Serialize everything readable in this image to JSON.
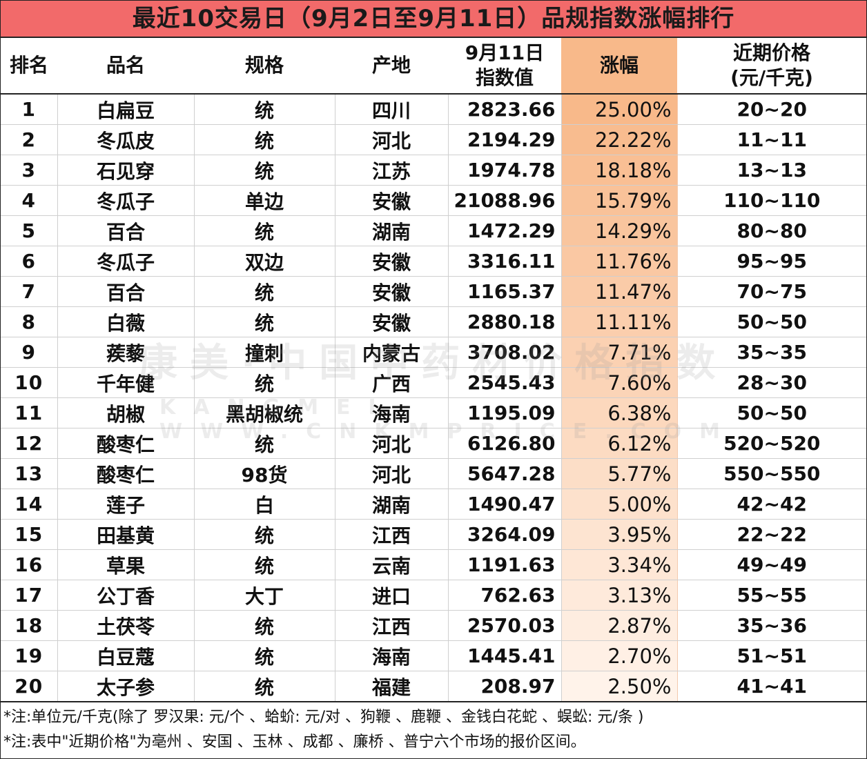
{
  "title": "最近10交易日（9月2日至9月11日）品规指数涨幅排行",
  "headers": {
    "rank": "排名",
    "name": "品名",
    "spec": "规格",
    "origin": "产地",
    "index_line1": "9月11日",
    "index_line2": "指数值",
    "growth": "涨幅",
    "price_line1": "近期价格",
    "price_line2": "(元/千克)"
  },
  "rows": [
    {
      "rank": "1",
      "name": "白扁豆",
      "spec": "统",
      "origin": "四川",
      "index": "2823.66",
      "growth": "25.00%",
      "price": "20~20"
    },
    {
      "rank": "2",
      "name": "冬瓜皮",
      "spec": "统",
      "origin": "河北",
      "index": "2194.29",
      "growth": "22.22%",
      "price": "11~11"
    },
    {
      "rank": "3",
      "name": "石见穿",
      "spec": "统",
      "origin": "江苏",
      "index": "1974.78",
      "growth": "18.18%",
      "price": "13~13"
    },
    {
      "rank": "4",
      "name": "冬瓜子",
      "spec": "单边",
      "origin": "安徽",
      "index": "21088.96",
      "growth": "15.79%",
      "price": "110~110"
    },
    {
      "rank": "5",
      "name": "百合",
      "spec": "统",
      "origin": "湖南",
      "index": "1472.29",
      "growth": "14.29%",
      "price": "80~80"
    },
    {
      "rank": "6",
      "name": "冬瓜子",
      "spec": "双边",
      "origin": "安徽",
      "index": "3316.11",
      "growth": "11.76%",
      "price": "95~95"
    },
    {
      "rank": "7",
      "name": "百合",
      "spec": "统",
      "origin": "安徽",
      "index": "1165.37",
      "growth": "11.47%",
      "price": "70~75"
    },
    {
      "rank": "8",
      "name": "白薇",
      "spec": "统",
      "origin": "安徽",
      "index": "2880.18",
      "growth": "11.11%",
      "price": "50~50"
    },
    {
      "rank": "9",
      "name": "蒺藜",
      "spec": "撞刺",
      "origin": "内蒙古",
      "index": "3708.02",
      "growth": "7.71%",
      "price": "35~35"
    },
    {
      "rank": "10",
      "name": "千年健",
      "spec": "统",
      "origin": "广西",
      "index": "2545.43",
      "growth": "7.60%",
      "price": "28~30"
    },
    {
      "rank": "11",
      "name": "胡椒",
      "spec": "黑胡椒统",
      "origin": "海南",
      "index": "1195.09",
      "growth": "6.38%",
      "price": "50~50"
    },
    {
      "rank": "12",
      "name": "酸枣仁",
      "spec": "统",
      "origin": "河北",
      "index": "6126.80",
      "growth": "6.12%",
      "price": "520~520"
    },
    {
      "rank": "13",
      "name": "酸枣仁",
      "spec": "98货",
      "origin": "河北",
      "index": "5647.28",
      "growth": "5.77%",
      "price": "550~550"
    },
    {
      "rank": "14",
      "name": "莲子",
      "spec": "白",
      "origin": "湖南",
      "index": "1490.47",
      "growth": "5.00%",
      "price": "42~42"
    },
    {
      "rank": "15",
      "name": "田基黄",
      "spec": "统",
      "origin": "江西",
      "index": "3264.09",
      "growth": "3.95%",
      "price": "22~22"
    },
    {
      "rank": "16",
      "name": "草果",
      "spec": "统",
      "origin": "云南",
      "index": "1191.63",
      "growth": "3.34%",
      "price": "49~49"
    },
    {
      "rank": "17",
      "name": "公丁香",
      "spec": "大丁",
      "origin": "进口",
      "index": "762.63",
      "growth": "3.13%",
      "price": "55~55"
    },
    {
      "rank": "18",
      "name": "土茯苓",
      "spec": "统",
      "origin": "江西",
      "index": "2570.03",
      "growth": "2.87%",
      "price": "35~36"
    },
    {
      "rank": "19",
      "name": "白豆蔻",
      "spec": "统",
      "origin": "海南",
      "index": "1445.41",
      "growth": "2.70%",
      "price": "51~51"
    },
    {
      "rank": "20",
      "name": "太子参",
      "spec": "统",
      "origin": "福建",
      "index": "208.97",
      "growth": "2.50%",
      "price": "41~41"
    }
  ],
  "notes": [
    "*注:单位元/千克(除了 罗汉果: 元/个 、蛤蚧: 元/对 、狗鞭 、鹿鞭 、金钱白花蛇 、蜈蚣: 元/条 )",
    "*注:表中\"近期价格\"为亳州 、安国 、玉林 、成都 、廉桥 、普宁六个市场的报价区间。"
  ],
  "watermark": {
    "main": "康美·中国中药材价格指数",
    "sub": "KANGMEI WWW.CNKMPRICE.COM"
  },
  "colors": {
    "title_bg": "#f26a6a",
    "growth_top": "#f8b98a",
    "growth_bottom": "#fff3ea"
  }
}
